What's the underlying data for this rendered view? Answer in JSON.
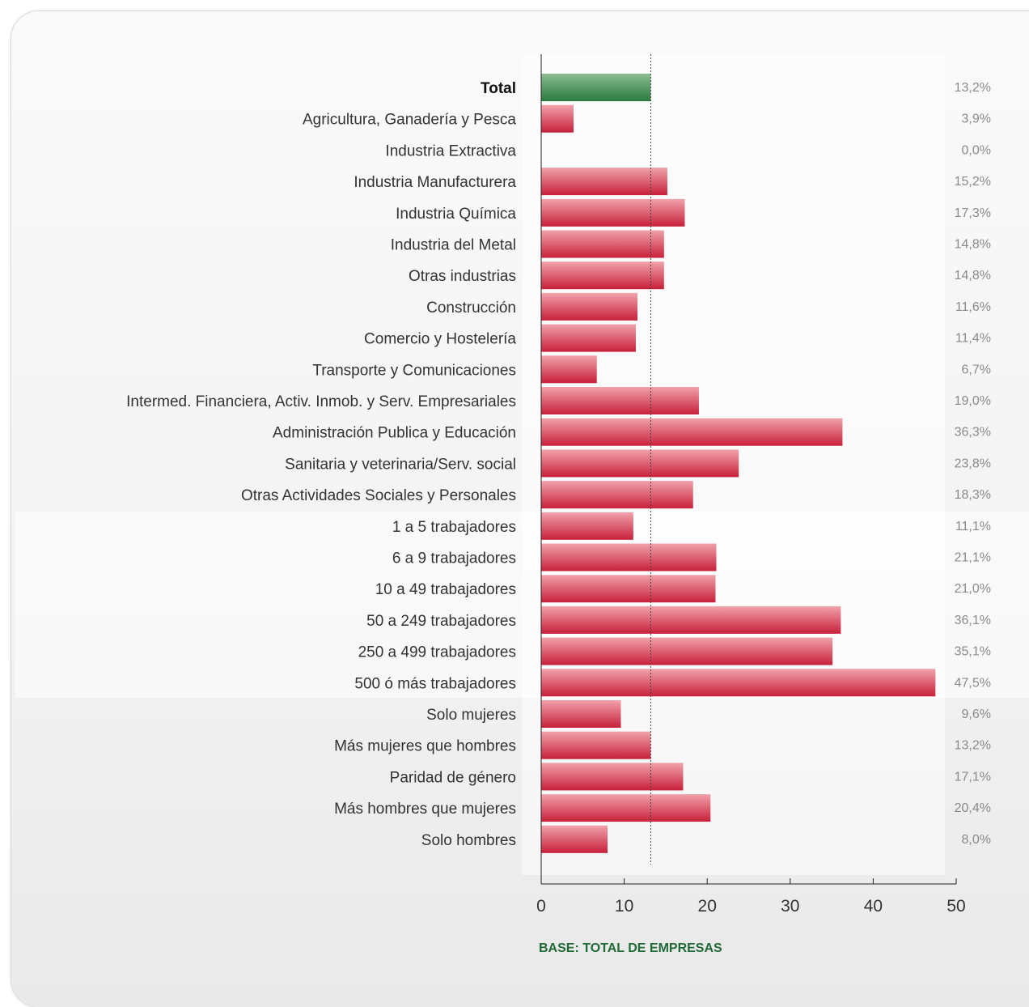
{
  "chart_data": {
    "type": "bar",
    "orientation": "horizontal",
    "categories": [
      "Total",
      "Agricultura, Ganadería y Pesca",
      "Industria Extractiva",
      "Industria Manufacturera",
      "Industria Química",
      "Industria del Metal",
      "Otras industrias",
      "Construcción",
      "Comercio y Hostelería",
      "Transporte y Comunicaciones",
      "Intermed. Financiera, Activ. Inmob. y Serv. Empresariales",
      "Administración Publica y Educación",
      "Sanitaria y veterinaria/Serv. social",
      "Otras Actividades Sociales y Personales",
      "1 a 5 trabajadores",
      "6 a 9 trabajadores",
      "10 a 49 trabajadores",
      "50 a 249 trabajadores",
      "250 a 499 trabajadores",
      "500 ó más trabajadores",
      "Solo mujeres",
      "Más mujeres que hombres",
      "Paridad de género",
      "Más hombres que mujeres",
      "Solo hombres"
    ],
    "values": [
      13.2,
      3.9,
      0.0,
      15.2,
      17.3,
      14.8,
      14.8,
      11.6,
      11.4,
      6.7,
      19.0,
      36.3,
      23.8,
      18.3,
      11.1,
      21.1,
      21.0,
      36.1,
      35.1,
      47.5,
      9.6,
      13.2,
      17.1,
      20.4,
      8.0
    ],
    "value_labels": [
      "13,2%",
      "3,9%",
      "0,0%",
      "15,2%",
      "17,3%",
      "14,8%",
      "14,8%",
      "11,6%",
      "11,4%",
      "6,7%",
      "19,0%",
      "36,3%",
      "23,8%",
      "18,3%",
      "11,1%",
      "21,1%",
      "21,0%",
      "36,1%",
      "35,1%",
      "47,5%",
      "9,6%",
      "13,2%",
      "17,1%",
      "20,4%",
      "8,0%"
    ],
    "highlight_category": "Total",
    "reference_line": 13.2,
    "xlim": [
      0,
      50
    ],
    "xticks": [
      "0",
      "10",
      "20",
      "30",
      "40",
      "50"
    ],
    "note": "BASE: TOTAL DE EMPRESAS",
    "colors": {
      "bar": "#c8203a",
      "bar_light": "#f0a2ab",
      "highlight": "#2a7a3e",
      "highlight_light": "#8bbd92",
      "note": "#1f6a36"
    }
  }
}
